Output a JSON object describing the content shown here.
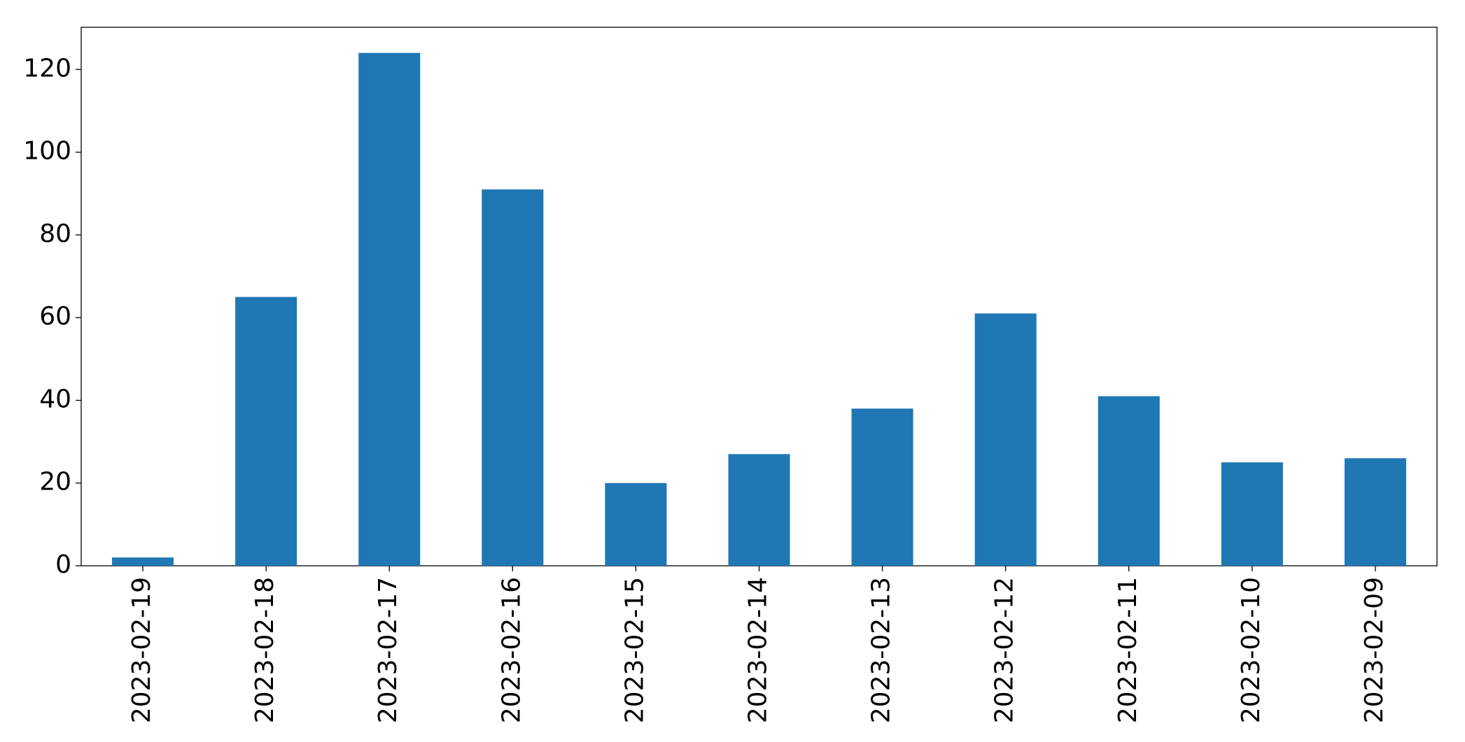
{
  "chart_data": {
    "type": "bar",
    "categories": [
      "2023-02-19",
      "2023-02-18",
      "2023-02-17",
      "2023-02-16",
      "2023-02-15",
      "2023-02-14",
      "2023-02-13",
      "2023-02-12",
      "2023-02-11",
      "2023-02-10",
      "2023-02-09"
    ],
    "values": [
      2,
      65,
      124,
      91,
      20,
      27,
      38,
      61,
      41,
      25,
      26
    ],
    "color": "#1f77b4",
    "ylim": [
      0,
      130.2
    ],
    "yticks": [
      0,
      20,
      40,
      60,
      80,
      100,
      120
    ],
    "grid": false
  }
}
